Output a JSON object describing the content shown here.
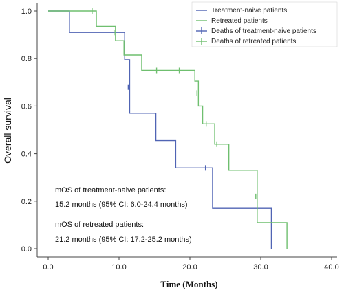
{
  "chart_data": {
    "type": "line",
    "subtype": "kaplan-meier",
    "xlabel": "Time (Months)",
    "ylabel": "Overall survival",
    "xlim": [
      0,
      40
    ],
    "ylim": [
      0,
      1
    ],
    "x_ticks": [
      "0.0",
      "10.0",
      "20.0",
      "30.0",
      "40.0"
    ],
    "y_ticks": [
      "0.0",
      "0.2",
      "0.4",
      "0.6",
      "0.8",
      "1.0"
    ],
    "grid": false,
    "legend_position": "top-right",
    "legend": [
      "Treatment-naive patients",
      "Retreated patients",
      "Deaths of treatment-naive patients",
      "Deaths of retreated patients"
    ],
    "series": [
      {
        "name": "Treatment-naive patients",
        "color": "#5064b4",
        "steps": [
          [
            0,
            1.0
          ],
          [
            3,
            0.91
          ],
          [
            10.8,
            0.795
          ],
          [
            11.5,
            0.57
          ],
          [
            15.2,
            0.455
          ],
          [
            18,
            0.34
          ],
          [
            23.2,
            0.17
          ],
          [
            31.5,
            0.0
          ]
        ],
        "censored": [
          [
            9.3,
            0.91
          ],
          [
            11.3,
            0.68
          ],
          [
            22.2,
            0.34
          ]
        ]
      },
      {
        "name": "Retreated patients",
        "color": "#6fbf6f",
        "steps": [
          [
            0,
            1.0
          ],
          [
            6.8,
            0.935
          ],
          [
            9.5,
            0.875
          ],
          [
            10.7,
            0.815
          ],
          [
            13.2,
            0.75
          ],
          [
            20.7,
            0.705
          ],
          [
            21.2,
            0.6
          ],
          [
            21.8,
            0.525
          ],
          [
            23.5,
            0.44
          ],
          [
            25.5,
            0.33
          ],
          [
            29.5,
            0.11
          ],
          [
            33.7,
            0.0
          ]
        ],
        "censored": [
          [
            6.2,
            1.0
          ],
          [
            9.3,
            0.91
          ],
          [
            15.3,
            0.75
          ],
          [
            18.5,
            0.75
          ],
          [
            21.0,
            0.655
          ],
          [
            22.3,
            0.525
          ],
          [
            23.8,
            0.44
          ],
          [
            29.3,
            0.22
          ]
        ]
      }
    ]
  },
  "annotations": [
    "mOS of treatment-naive patients:",
    "15.2 months (95% CI: 6.0-24.4 months)",
    "mOS of retreated patients:",
    "21.2 months (95% CI: 17.2-25.2 months)"
  ]
}
